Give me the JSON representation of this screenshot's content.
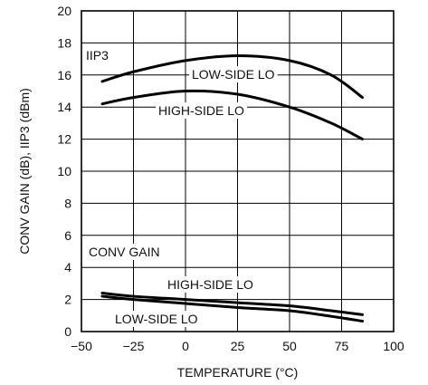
{
  "chart_data": {
    "type": "line",
    "title": "",
    "xlabel": "TEMPERATURE (°C)",
    "ylabel": "CONV GAIN (dB), IIP3 (dBm)",
    "xlim": [
      -50,
      100
    ],
    "ylim": [
      0,
      20
    ],
    "xticks": [
      -50,
      -25,
      0,
      25,
      50,
      75,
      100
    ],
    "yticks": [
      0,
      2,
      4,
      6,
      8,
      10,
      12,
      14,
      16,
      18,
      20
    ],
    "grid": true,
    "group_labels": {
      "iip3": "IIP3",
      "conv_gain": "CONV GAIN"
    },
    "series": [
      {
        "name": "LOW-SIDE LO",
        "group": "IIP3",
        "x": [
          -40,
          -25,
          0,
          25,
          50,
          70,
          85
        ],
        "y": [
          15.6,
          16.2,
          16.9,
          17.2,
          16.9,
          16.0,
          14.6
        ]
      },
      {
        "name": "HIGH-SIDE LO",
        "group": "IIP3",
        "x": [
          -40,
          -25,
          0,
          25,
          50,
          70,
          85
        ],
        "y": [
          14.2,
          14.6,
          15.0,
          14.8,
          14.0,
          13.0,
          12.0
        ]
      },
      {
        "name": "HIGH-SIDE LO",
        "group": "CONV GAIN",
        "x": [
          -40,
          -25,
          0,
          25,
          50,
          70,
          85
        ],
        "y": [
          2.4,
          2.2,
          2.0,
          1.8,
          1.6,
          1.3,
          1.05
        ]
      },
      {
        "name": "LOW-SIDE LO",
        "group": "CONV GAIN",
        "x": [
          -40,
          -25,
          0,
          25,
          50,
          70,
          85
        ],
        "y": [
          2.2,
          2.0,
          1.75,
          1.5,
          1.3,
          0.95,
          0.65
        ]
      }
    ]
  }
}
